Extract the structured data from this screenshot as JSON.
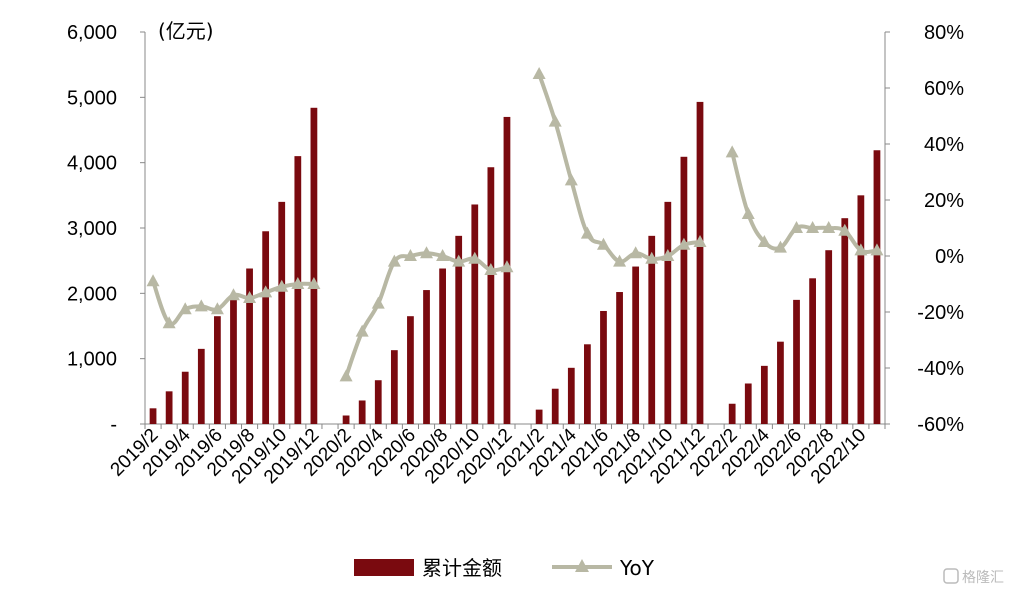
{
  "chart_data": {
    "type": "bar+line",
    "unit_label": "(亿元)",
    "categories": [
      "2019/2",
      "2019/3",
      "2019/4",
      "2019/5",
      "2019/6",
      "2019/7",
      "2019/8",
      "2019/9",
      "2019/10",
      "2019/11",
      "2019/12",
      "2020/1",
      "2020/2",
      "2020/3",
      "2020/4",
      "2020/5",
      "2020/6",
      "2020/7",
      "2020/8",
      "2020/9",
      "2020/10",
      "2020/11",
      "2020/12",
      "2021/1",
      "2021/2",
      "2021/3",
      "2021/4",
      "2021/5",
      "2021/6",
      "2021/7",
      "2021/8",
      "2021/9",
      "2021/10",
      "2021/11",
      "2021/12",
      "2022/1",
      "2022/2",
      "2022/3",
      "2022/4",
      "2022/5",
      "2022/6",
      "2022/7",
      "2022/8",
      "2022/9",
      "2022/10",
      "2022/11"
    ],
    "x_tick_labels": [
      "2019/2",
      "2019/4",
      "2019/6",
      "2019/8",
      "2019/10",
      "2019/12",
      "2020/2",
      "2020/4",
      "2020/6",
      "2020/8",
      "2020/10",
      "2020/12",
      "2021/2",
      "2021/4",
      "2021/6",
      "2021/8",
      "2021/10",
      "2021/12",
      "2022/2",
      "2022/4",
      "2022/6",
      "2022/8",
      "2022/10"
    ],
    "series": [
      {
        "name": "累计金额",
        "type": "bar",
        "axis": "left",
        "color": "#7a0a0f",
        "values": [
          240,
          500,
          800,
          1150,
          1650,
          1920,
          2380,
          2950,
          3400,
          4100,
          4840,
          null,
          130,
          360,
          670,
          1130,
          1650,
          2050,
          2380,
          2880,
          3360,
          3930,
          4700,
          null,
          220,
          540,
          860,
          1220,
          1730,
          2020,
          2410,
          2880,
          3400,
          4090,
          4930,
          null,
          310,
          620,
          890,
          1260,
          1900,
          2230,
          2660,
          3150,
          3500,
          4190
        ]
      },
      {
        "name": "YoY",
        "type": "line",
        "axis": "right",
        "color": "#b8b8a4",
        "marker": "triangle",
        "values": [
          -9,
          -24,
          -19,
          -18,
          -19,
          -14,
          -15,
          -13,
          -11,
          -10,
          -10,
          null,
          -43,
          -27,
          -17,
          -2,
          0,
          1,
          0,
          -2,
          -1,
          -5,
          -4,
          null,
          65,
          48,
          27,
          8,
          4,
          -2,
          1,
          -1,
          0,
          4,
          5,
          null,
          37,
          15,
          5,
          3,
          10,
          10,
          10,
          9,
          2,
          2
        ]
      }
    ],
    "y_left": {
      "min": 0,
      "max": 6000,
      "ticks": [
        "-",
        "1,000",
        "2,000",
        "3,000",
        "4,000",
        "5,000",
        "6,000"
      ]
    },
    "y_right": {
      "min": -60,
      "max": 80,
      "ticks": [
        "-60%",
        "-40%",
        "-20%",
        "0%",
        "20%",
        "40%",
        "60%",
        "80%"
      ]
    },
    "legend": {
      "position": "bottom",
      "entries": [
        "累计金额",
        "YoY"
      ]
    },
    "grid": false
  },
  "watermark": {
    "text": "格隆汇",
    "icon": "g-logo-icon"
  }
}
